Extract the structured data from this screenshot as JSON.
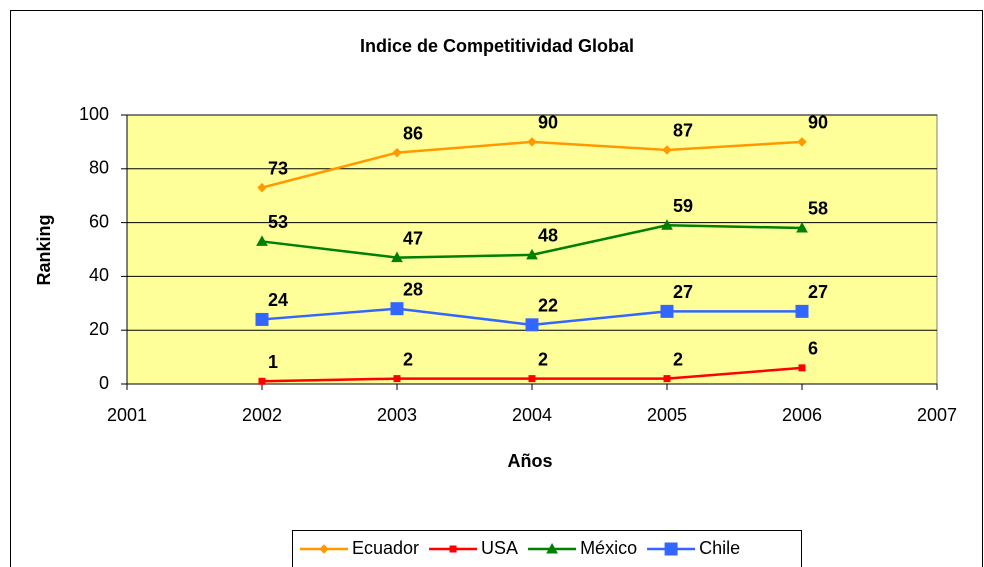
{
  "chart_data": {
    "type": "line",
    "title": "Indice de Competitividad Global",
    "xlabel": "Años",
    "ylabel": "Ranking",
    "x": [
      2002,
      2003,
      2004,
      2005,
      2006
    ],
    "series": [
      {
        "name": "Ecuador",
        "color": "#ff9900",
        "marker": "diamond",
        "values": [
          73,
          86,
          90,
          87,
          90
        ]
      },
      {
        "name": "USA",
        "color": "#ff0000",
        "marker": "square",
        "values": [
          1,
          2,
          2,
          2,
          6
        ]
      },
      {
        "name": "México",
        "color": "#008000",
        "marker": "triangle",
        "values": [
          53,
          47,
          48,
          59,
          58
        ]
      },
      {
        "name": "Chile",
        "color": "#3366ff",
        "marker": "bigsquare",
        "values": [
          24,
          28,
          22,
          27,
          27
        ]
      }
    ],
    "xlim": [
      2001,
      2007
    ],
    "xticks": [
      2001,
      2002,
      2003,
      2004,
      2005,
      2006,
      2007
    ],
    "ylim": [
      0,
      100
    ],
    "yticks": [
      0,
      20,
      40,
      60,
      80,
      100
    ],
    "grid": true,
    "legend": "bottom",
    "plot_background": "#ffff99"
  }
}
